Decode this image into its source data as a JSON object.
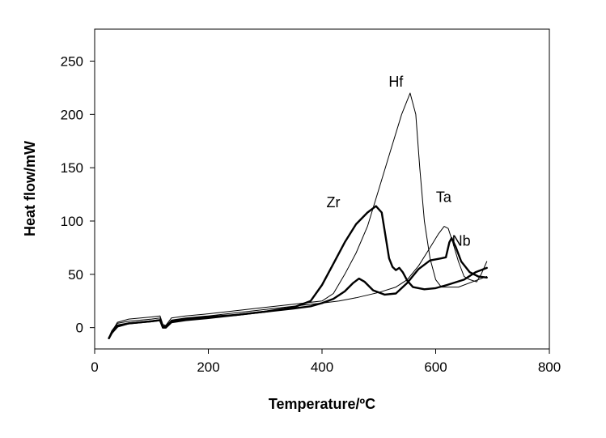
{
  "chart_data": {
    "type": "line",
    "xlabel": "Temperature/ºC",
    "ylabel": "Heat flow/mW",
    "xlim": [
      0,
      800
    ],
    "ylim": [
      -20,
      280
    ],
    "xticks": [
      0,
      200,
      400,
      600,
      800
    ],
    "yticks": [
      0,
      50,
      100,
      150,
      200,
      250
    ],
    "grid": false,
    "legend": "none",
    "series": [
      {
        "name": "Zr",
        "weight": "bold",
        "label_at": [
          420,
          113
        ],
        "points": [
          [
            25,
            -10
          ],
          [
            30,
            -5
          ],
          [
            40,
            2
          ],
          [
            60,
            4
          ],
          [
            100,
            6
          ],
          [
            115,
            7
          ],
          [
            120,
            1
          ],
          [
            125,
            1
          ],
          [
            135,
            6
          ],
          [
            160,
            8
          ],
          [
            200,
            10
          ],
          [
            250,
            12
          ],
          [
            300,
            15
          ],
          [
            350,
            19
          ],
          [
            380,
            25
          ],
          [
            400,
            40
          ],
          [
            420,
            60
          ],
          [
            440,
            80
          ],
          [
            460,
            97
          ],
          [
            480,
            108
          ],
          [
            495,
            114
          ],
          [
            505,
            108
          ],
          [
            512,
            85
          ],
          [
            518,
            65
          ],
          [
            524,
            57
          ],
          [
            530,
            54
          ],
          [
            536,
            56
          ],
          [
            542,
            52
          ],
          [
            550,
            44
          ],
          [
            560,
            38
          ],
          [
            580,
            36
          ],
          [
            600,
            37
          ],
          [
            620,
            40
          ],
          [
            650,
            45
          ],
          [
            670,
            52
          ],
          [
            690,
            56
          ]
        ]
      },
      {
        "name": "Hf",
        "weight": "thin",
        "label_at": [
          530,
          226
        ],
        "points": [
          [
            25,
            -10
          ],
          [
            30,
            -4
          ],
          [
            40,
            5
          ],
          [
            60,
            8
          ],
          [
            100,
            10
          ],
          [
            115,
            11
          ],
          [
            120,
            3
          ],
          [
            125,
            2
          ],
          [
            135,
            9
          ],
          [
            160,
            11
          ],
          [
            200,
            13
          ],
          [
            250,
            16
          ],
          [
            300,
            19
          ],
          [
            350,
            22
          ],
          [
            400,
            25
          ],
          [
            420,
            32
          ],
          [
            440,
            50
          ],
          [
            460,
            70
          ],
          [
            480,
            95
          ],
          [
            500,
            130
          ],
          [
            520,
            165
          ],
          [
            540,
            200
          ],
          [
            555,
            220
          ],
          [
            565,
            200
          ],
          [
            572,
            150
          ],
          [
            580,
            100
          ],
          [
            590,
            65
          ],
          [
            600,
            45
          ],
          [
            610,
            38
          ],
          [
            640,
            38
          ],
          [
            670,
            44
          ],
          [
            690,
            48
          ]
        ]
      },
      {
        "name": "Ta",
        "weight": "thin",
        "label_at": [
          614,
          118
        ],
        "points": [
          [
            25,
            -9
          ],
          [
            30,
            -3
          ],
          [
            40,
            4
          ],
          [
            60,
            6
          ],
          [
            100,
            8
          ],
          [
            115,
            9
          ],
          [
            120,
            2
          ],
          [
            125,
            1
          ],
          [
            135,
            7
          ],
          [
            160,
            9
          ],
          [
            200,
            11
          ],
          [
            250,
            14
          ],
          [
            300,
            17
          ],
          [
            350,
            20
          ],
          [
            380,
            22
          ],
          [
            400,
            23
          ],
          [
            430,
            25
          ],
          [
            460,
            28
          ],
          [
            500,
            33
          ],
          [
            530,
            38
          ],
          [
            550,
            45
          ],
          [
            570,
            58
          ],
          [
            590,
            75
          ],
          [
            605,
            88
          ],
          [
            615,
            95
          ],
          [
            622,
            93
          ],
          [
            630,
            80
          ],
          [
            640,
            62
          ],
          [
            650,
            48
          ],
          [
            660,
            45
          ],
          [
            672,
            43
          ],
          [
            680,
            50
          ],
          [
            690,
            62
          ]
        ]
      },
      {
        "name": "Nb",
        "weight": "bold",
        "label_at": [
          645,
          77
        ],
        "points": [
          [
            25,
            -10
          ],
          [
            30,
            -5
          ],
          [
            40,
            1
          ],
          [
            60,
            4
          ],
          [
            100,
            6
          ],
          [
            115,
            7
          ],
          [
            120,
            0
          ],
          [
            125,
            0
          ],
          [
            135,
            5
          ],
          [
            160,
            7
          ],
          [
            200,
            9
          ],
          [
            250,
            12
          ],
          [
            300,
            15
          ],
          [
            350,
            18
          ],
          [
            380,
            20
          ],
          [
            400,
            23
          ],
          [
            420,
            27
          ],
          [
            440,
            34
          ],
          [
            455,
            42
          ],
          [
            465,
            46
          ],
          [
            475,
            43
          ],
          [
            490,
            35
          ],
          [
            510,
            31
          ],
          [
            530,
            32
          ],
          [
            550,
            42
          ],
          [
            570,
            55
          ],
          [
            590,
            63
          ],
          [
            610,
            65
          ],
          [
            618,
            66
          ],
          [
            624,
            80
          ],
          [
            628,
            84
          ],
          [
            635,
            76
          ],
          [
            645,
            62
          ],
          [
            660,
            52
          ],
          [
            675,
            48
          ],
          [
            690,
            47
          ]
        ]
      }
    ]
  }
}
